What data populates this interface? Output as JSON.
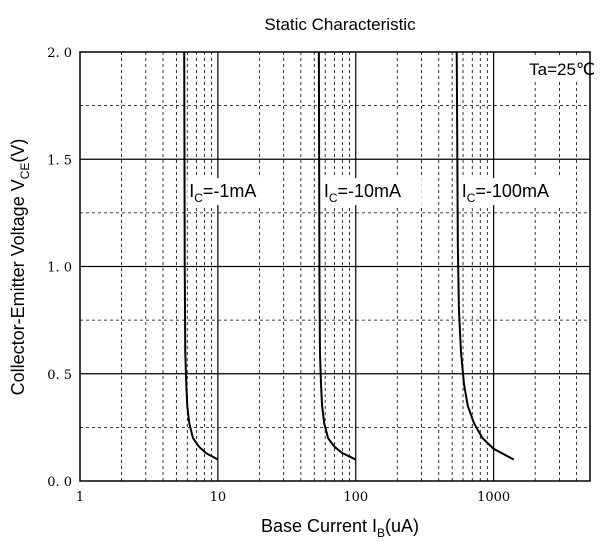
{
  "chart_data": {
    "type": "line",
    "title": "Static Characteristic",
    "xlabel": {
      "main": "Base Current  I",
      "sub": "B",
      "unit": "(uA)"
    },
    "ylabel": {
      "main": "Collector-Emitter Voltage  V",
      "sub": "CE",
      "unit": "(V)"
    },
    "x_scale": "log",
    "xlim": [
      1,
      5000
    ],
    "ylim": [
      0,
      2.0
    ],
    "x_ticks": [
      {
        "value": 1,
        "label": "1"
      },
      {
        "value": 10,
        "label": "10"
      },
      {
        "value": 100,
        "label": "100"
      },
      {
        "value": 1000,
        "label": "1000"
      }
    ],
    "y_ticks": [
      {
        "value": 0,
        "label": "0. 0"
      },
      {
        "value": 0.5,
        "label": "0. 5"
      },
      {
        "value": 1.0,
        "label": "1. 0"
      },
      {
        "value": 1.5,
        "label": "1. 5"
      },
      {
        "value": 2.0,
        "label": "2. 0"
      }
    ],
    "grid": true,
    "annotation": "Ta=25℃",
    "series": [
      {
        "name": "I_C=-1mA",
        "label_main": "I",
        "label_sub": "C",
        "label_rest": "=-1mA",
        "x": [
          5.7,
          5.75,
          5.8,
          5.9,
          6.0,
          6.2,
          6.6,
          7.3,
          8.2,
          10
        ],
        "y": [
          2.0,
          1.0,
          0.6,
          0.45,
          0.35,
          0.27,
          0.2,
          0.16,
          0.13,
          0.1
        ]
      },
      {
        "name": "I_C=-10mA",
        "label_main": "I",
        "label_sub": "C",
        "label_rest": "=-10mA",
        "x": [
          54,
          54.5,
          55,
          56,
          57,
          59,
          63,
          70,
          80,
          100
        ],
        "y": [
          2.0,
          1.0,
          0.6,
          0.45,
          0.35,
          0.27,
          0.2,
          0.16,
          0.13,
          0.1
        ]
      },
      {
        "name": "I_C=-100mA",
        "label_main": "I",
        "label_sub": "C",
        "label_rest": "=-100mA",
        "x": [
          540,
          550,
          560,
          580,
          610,
          650,
          720,
          830,
          1000,
          1400
        ],
        "y": [
          2.0,
          1.1,
          0.8,
          0.6,
          0.45,
          0.35,
          0.27,
          0.2,
          0.15,
          0.1
        ]
      }
    ]
  }
}
